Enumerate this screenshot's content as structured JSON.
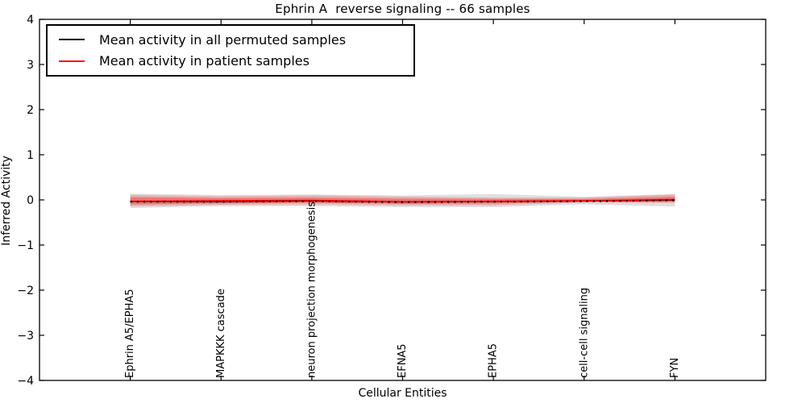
{
  "figure": {
    "title": "Ephrin A  reverse signaling -- 66 samples",
    "xlabel": "Cellular Entities",
    "ylabel": "Inferred Activity"
  },
  "chart_data": {
    "type": "line",
    "title": "Ephrin A  reverse signaling -- 66 samples",
    "xlabel": "Cellular Entities",
    "ylabel": "Inferred Activity",
    "xlim": [
      0,
      8
    ],
    "ylim": [
      -4,
      4
    ],
    "grid": false,
    "yticks": [
      -4,
      -3,
      -2,
      -1,
      0,
      1,
      2,
      3,
      4
    ],
    "ytick_labels": [
      "−4",
      "−3",
      "−2",
      "−1",
      "0",
      "1",
      "2",
      "3",
      "4"
    ],
    "categories": [
      "Ephrin A5/EPHA5",
      "MAPKKK cascade",
      "neuron projection morphogenesis",
      "EFNA5",
      "EPHA5",
      "cell-cell signaling",
      "FYN"
    ],
    "x": [
      1,
      2,
      3,
      4,
      5,
      6,
      7
    ],
    "series": [
      {
        "name": "Mean activity in all permuted samples",
        "color": "#000000",
        "style": "dotted",
        "values": [
          -0.04,
          -0.04,
          -0.03,
          -0.05,
          -0.04,
          -0.03,
          -0.01
        ]
      },
      {
        "name": "Mean activity in patient samples",
        "color": "#ff0000",
        "style": "solid",
        "values": [
          -0.03,
          -0.02,
          -0.01,
          -0.04,
          -0.03,
          -0.02,
          0.01
        ]
      }
    ],
    "bands": [
      {
        "name": "permuted-samples-range",
        "color": "#999999",
        "opacity": 0.3,
        "upper": [
          0.14,
          0.11,
          0.12,
          0.1,
          0.13,
          0.07,
          0.13
        ],
        "lower": [
          -0.18,
          -0.14,
          -0.14,
          -0.16,
          -0.16,
          -0.1,
          -0.15
        ]
      },
      {
        "name": "patient-samples-range-outer",
        "color": "#ff0000",
        "opacity": 0.22,
        "upper": [
          0.11,
          0.08,
          0.1,
          0.07,
          0.05,
          0.05,
          0.12
        ],
        "lower": [
          -0.14,
          -0.11,
          -0.1,
          -0.12,
          -0.12,
          -0.06,
          -0.07
        ]
      },
      {
        "name": "patient-samples-range-inner",
        "color": "#ff0000",
        "opacity": 0.32,
        "upper": [
          0.06,
          0.04,
          0.05,
          0.03,
          0.02,
          0.02,
          0.07
        ],
        "lower": [
          -0.1,
          -0.08,
          -0.06,
          -0.09,
          -0.08,
          -0.04,
          -0.04
        ]
      }
    ],
    "legend": {
      "position": "upper left",
      "entries": [
        {
          "label": "Mean activity in all permuted samples",
          "color": "#000000"
        },
        {
          "label": "Mean activity in patient samples",
          "color": "#ff0000"
        }
      ]
    },
    "axis_color": "#000000",
    "background": "#ffffff"
  }
}
